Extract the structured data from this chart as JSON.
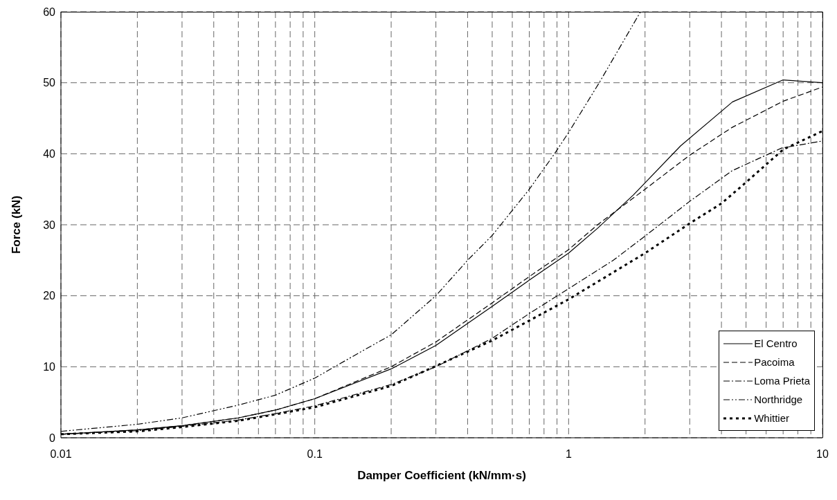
{
  "chart_data": {
    "type": "line",
    "xlabel": "Damper Coefficient (kN/mm·s)",
    "ylabel": "Force (kN)",
    "log": "x",
    "xlim": [
      0.01,
      10
    ],
    "ylim": [
      0,
      60
    ],
    "xticks": [
      0.01,
      {
        "value": 0.02,
        "label": null
      },
      {
        "value": 0.03,
        "label": null
      },
      {
        "value": 0.04,
        "label": null
      },
      {
        "value": 0.05,
        "label": null
      },
      {
        "value": 0.06,
        "label": null
      },
      {
        "value": 0.07,
        "label": null
      },
      {
        "value": 0.08,
        "label": null
      },
      {
        "value": 0.09,
        "label": null
      },
      0.1,
      {
        "value": 0.2,
        "label": null
      },
      {
        "value": 0.3,
        "label": null
      },
      {
        "value": 0.4,
        "label": null
      },
      {
        "value": 0.5,
        "label": null
      },
      {
        "value": 0.6,
        "label": null
      },
      {
        "value": 0.7,
        "label": null
      },
      {
        "value": 0.8,
        "label": null
      },
      {
        "value": 0.9,
        "label": null
      },
      1,
      {
        "value": 2,
        "label": null
      },
      {
        "value": 3,
        "label": null
      },
      {
        "value": 4,
        "label": null
      },
      {
        "value": 5,
        "label": null
      },
      {
        "value": 6,
        "label": null
      },
      {
        "value": 7,
        "label": null
      },
      {
        "value": 8,
        "label": null
      },
      {
        "value": 9,
        "label": null
      },
      10
    ],
    "yticks": [
      0,
      10,
      20,
      30,
      40,
      50,
      60
    ],
    "grid": true,
    "legend": "bottom right",
    "marker": "none",
    "series": [
      {
        "name": "El Centro",
        "color": "#000000",
        "line_style": "solid",
        "x": [
          0.01,
          0.02,
          0.03,
          0.05,
          0.07,
          0.1,
          0.2,
          0.3,
          0.5,
          0.7,
          1,
          1.3,
          1.8,
          2.76,
          4.42,
          7,
          10
        ],
        "values": [
          0.5,
          1.1,
          1.7,
          2.8,
          3.9,
          5.5,
          9.7,
          13,
          18.5,
          22.2,
          26,
          29.5,
          34.2,
          41.1,
          47.3,
          50.4,
          50
        ]
      },
      {
        "name": "Pacoima",
        "color": "#000000",
        "line_style": "dashed",
        "x": [
          0.01,
          0.02,
          0.03,
          0.05,
          0.07,
          0.1,
          0.2,
          0.3,
          0.5,
          0.7,
          1,
          1.3,
          2,
          3,
          4.4,
          7,
          10
        ],
        "values": [
          0.5,
          1.1,
          1.7,
          2.8,
          3.9,
          5.5,
          10,
          13.5,
          19,
          22.7,
          26.5,
          30,
          35,
          39.8,
          43.7,
          47.4,
          49.4
        ]
      },
      {
        "name": "Loma Prieta",
        "color": "#000000",
        "line_style": "dashdot",
        "x": [
          0.01,
          0.02,
          0.03,
          0.05,
          0.07,
          0.1,
          0.2,
          0.3,
          0.5,
          0.7,
          1,
          1.5,
          2,
          3,
          4.4,
          6.9,
          10
        ],
        "values": [
          0.5,
          1,
          1.6,
          2.5,
          3.4,
          4.5,
          7.5,
          10,
          14,
          17.5,
          21,
          25,
          28.4,
          33.3,
          37.6,
          40.8,
          41.8
        ]
      },
      {
        "name": "Northridge",
        "color": "#000000",
        "line_style": "dashdotdot",
        "x": [
          0.01,
          0.02,
          0.03,
          0.05,
          0.07,
          0.1,
          0.15,
          0.2,
          0.3,
          0.4,
          0.5,
          0.7,
          0.88,
          1,
          1.32,
          1.92
        ],
        "values": [
          0.9,
          1.9,
          2.8,
          4.6,
          6,
          8.4,
          12,
          14.5,
          20,
          25,
          28.5,
          35,
          40,
          43,
          50,
          60
        ]
      },
      {
        "name": "Whittier",
        "color": "#000000",
        "line_style": "dotted",
        "x": [
          0.01,
          0.02,
          0.03,
          0.05,
          0.07,
          0.1,
          0.2,
          0.3,
          0.5,
          0.7,
          1,
          2,
          3,
          4,
          4.9,
          7,
          10
        ],
        "values": [
          0.5,
          0.9,
          1.5,
          2.4,
          3.3,
          4.3,
          7.3,
          10.1,
          13.7,
          16.5,
          19.5,
          26,
          30.2,
          33,
          35.7,
          40.6,
          43.2
        ]
      }
    ]
  }
}
